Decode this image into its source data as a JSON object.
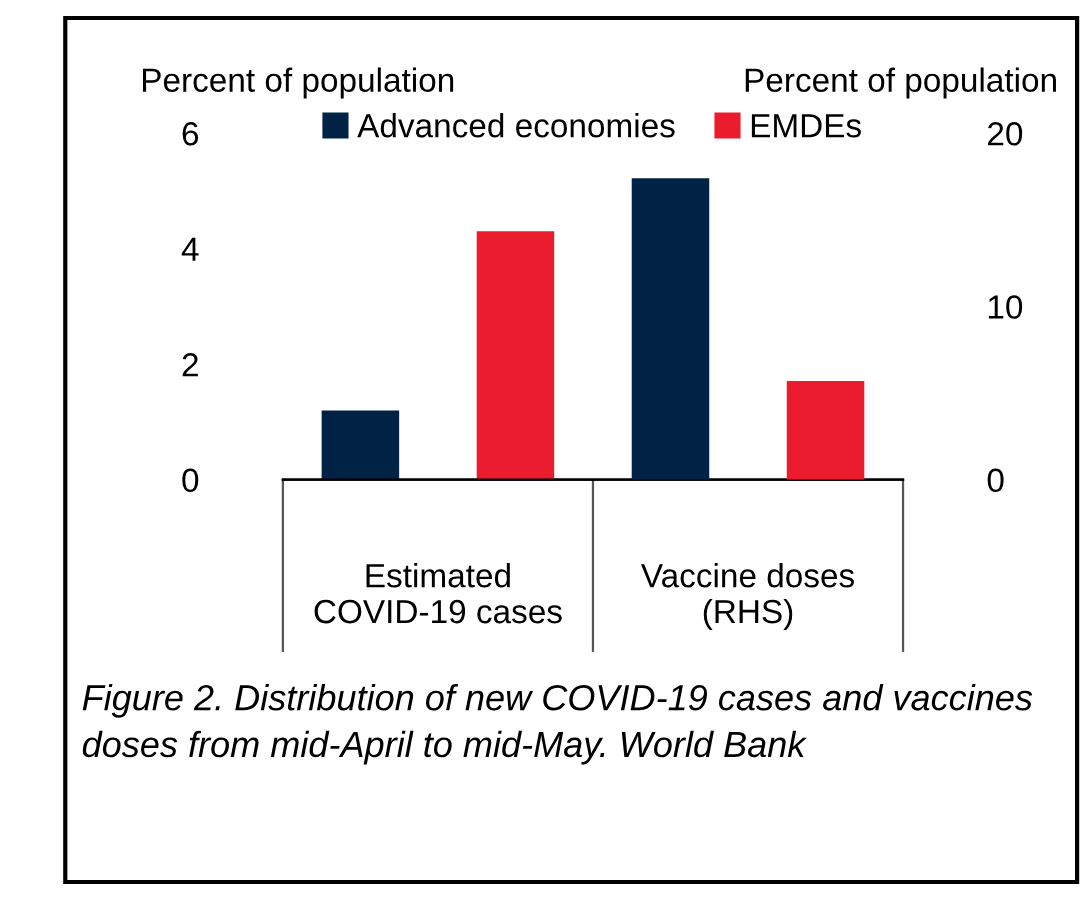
{
  "chart_data": {
    "type": "bar",
    "categories": [
      "Estimated\nCOVID-19 cases",
      "Vaccine doses\n(RHS)"
    ],
    "ylabel": "Percent of population",
    "y2label": "Percent of population",
    "series": [
      {
        "name": "Advanced economies",
        "color": "#002244",
        "values": [
          1.2,
          null
        ]
      },
      {
        "name": "EMDEs",
        "color": "#eb1c2d",
        "values": [
          4.3,
          null
        ]
      },
      {
        "color": "#002244",
        "values": [
          null,
          17.4
        ],
        "axis": "y2"
      },
      {
        "color": "#eb1c2d",
        "values": [
          null,
          5.7
        ],
        "axis": "y2"
      }
    ],
    "ylim": [
      0,
      6
    ],
    "yticks": [
      0,
      2,
      4,
      6
    ],
    "y2lim": [
      0,
      20
    ],
    "y2ticks": [
      0,
      10,
      20
    ],
    "legend": "top",
    "grid": false,
    "annotations": [
      "Figure 2. Distribution of new COVID-19 cases and vaccines doses from mid-April to mid-May. World Bank"
    ]
  }
}
